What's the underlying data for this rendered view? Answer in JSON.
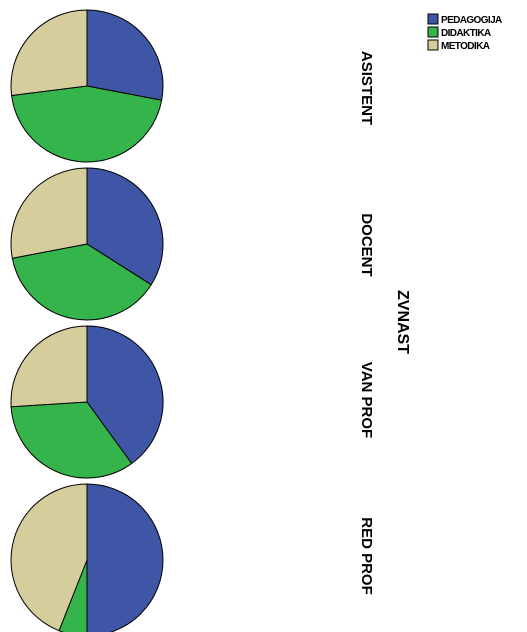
{
  "chart_data": {
    "type": "pie",
    "group_title": "ZVNAST",
    "series": [
      {
        "name": "PEDAGOGIJA",
        "color": "#3f56a6"
      },
      {
        "name": "DIDAKTIKA",
        "color": "#34b44a"
      },
      {
        "name": "METODIKA",
        "color": "#d6cd9d"
      }
    ],
    "pies": [
      {
        "label": "ASISTENT",
        "values": [
          28,
          45,
          27
        ]
      },
      {
        "label": "DOCENT",
        "values": [
          34,
          38,
          28
        ]
      },
      {
        "label": "VAN PROF",
        "values": [
          40,
          34,
          26
        ]
      },
      {
        "label": "RED PROF",
        "values": [
          50,
          6,
          44
        ]
      }
    ],
    "legend_position": "top-right"
  }
}
